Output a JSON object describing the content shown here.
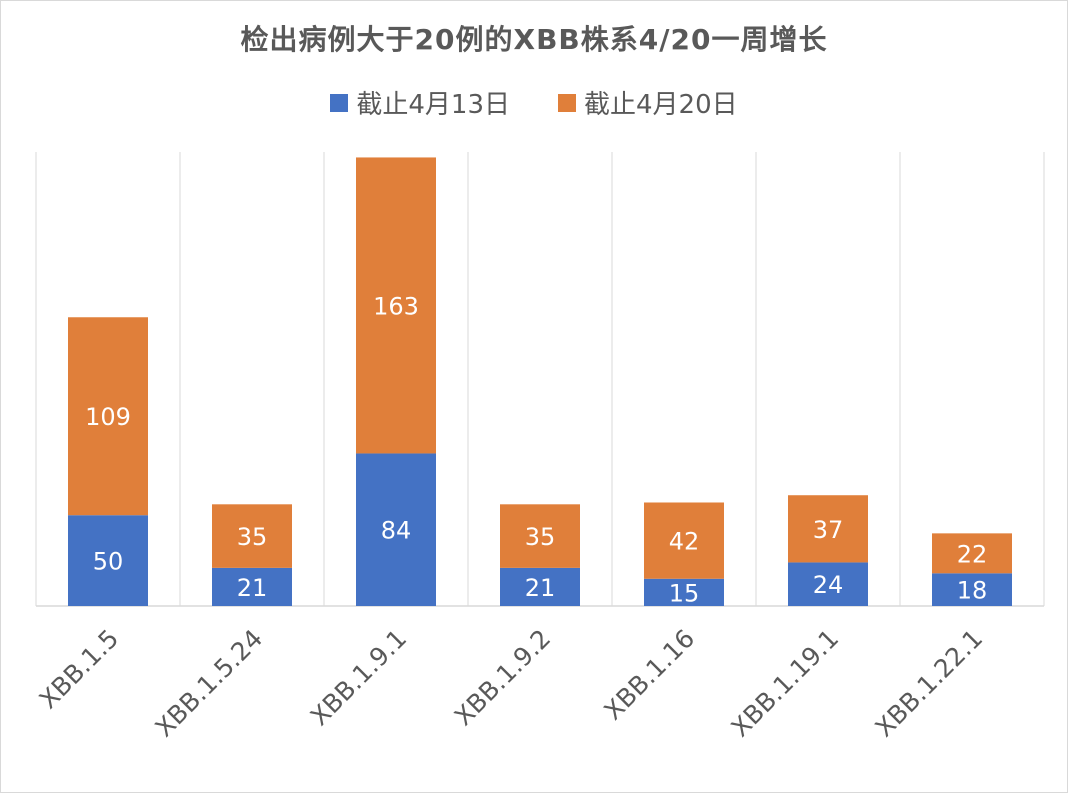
{
  "chart_data": {
    "type": "bar",
    "stacked": true,
    "title": "检出病例大于20例的XBB株系4/20一周增长",
    "categories": [
      "XBB.1.5",
      "XBB.1.5.24",
      "XBB.1.9.1",
      "XBB.1.9.2",
      "XBB.1.16",
      "XBB.1.19.1",
      "XBB.1.22.1"
    ],
    "series": [
      {
        "name": "截止4月13日",
        "color": "#4472C4",
        "values": [
          50,
          21,
          84,
          21,
          15,
          24,
          18
        ]
      },
      {
        "name": "截止4月20日",
        "color": "#E07F3A",
        "values": [
          109,
          35,
          163,
          35,
          42,
          37,
          22
        ]
      }
    ],
    "ylim": [
      0,
      250
    ],
    "grid": "vertical category separators",
    "legend_position": "top"
  }
}
